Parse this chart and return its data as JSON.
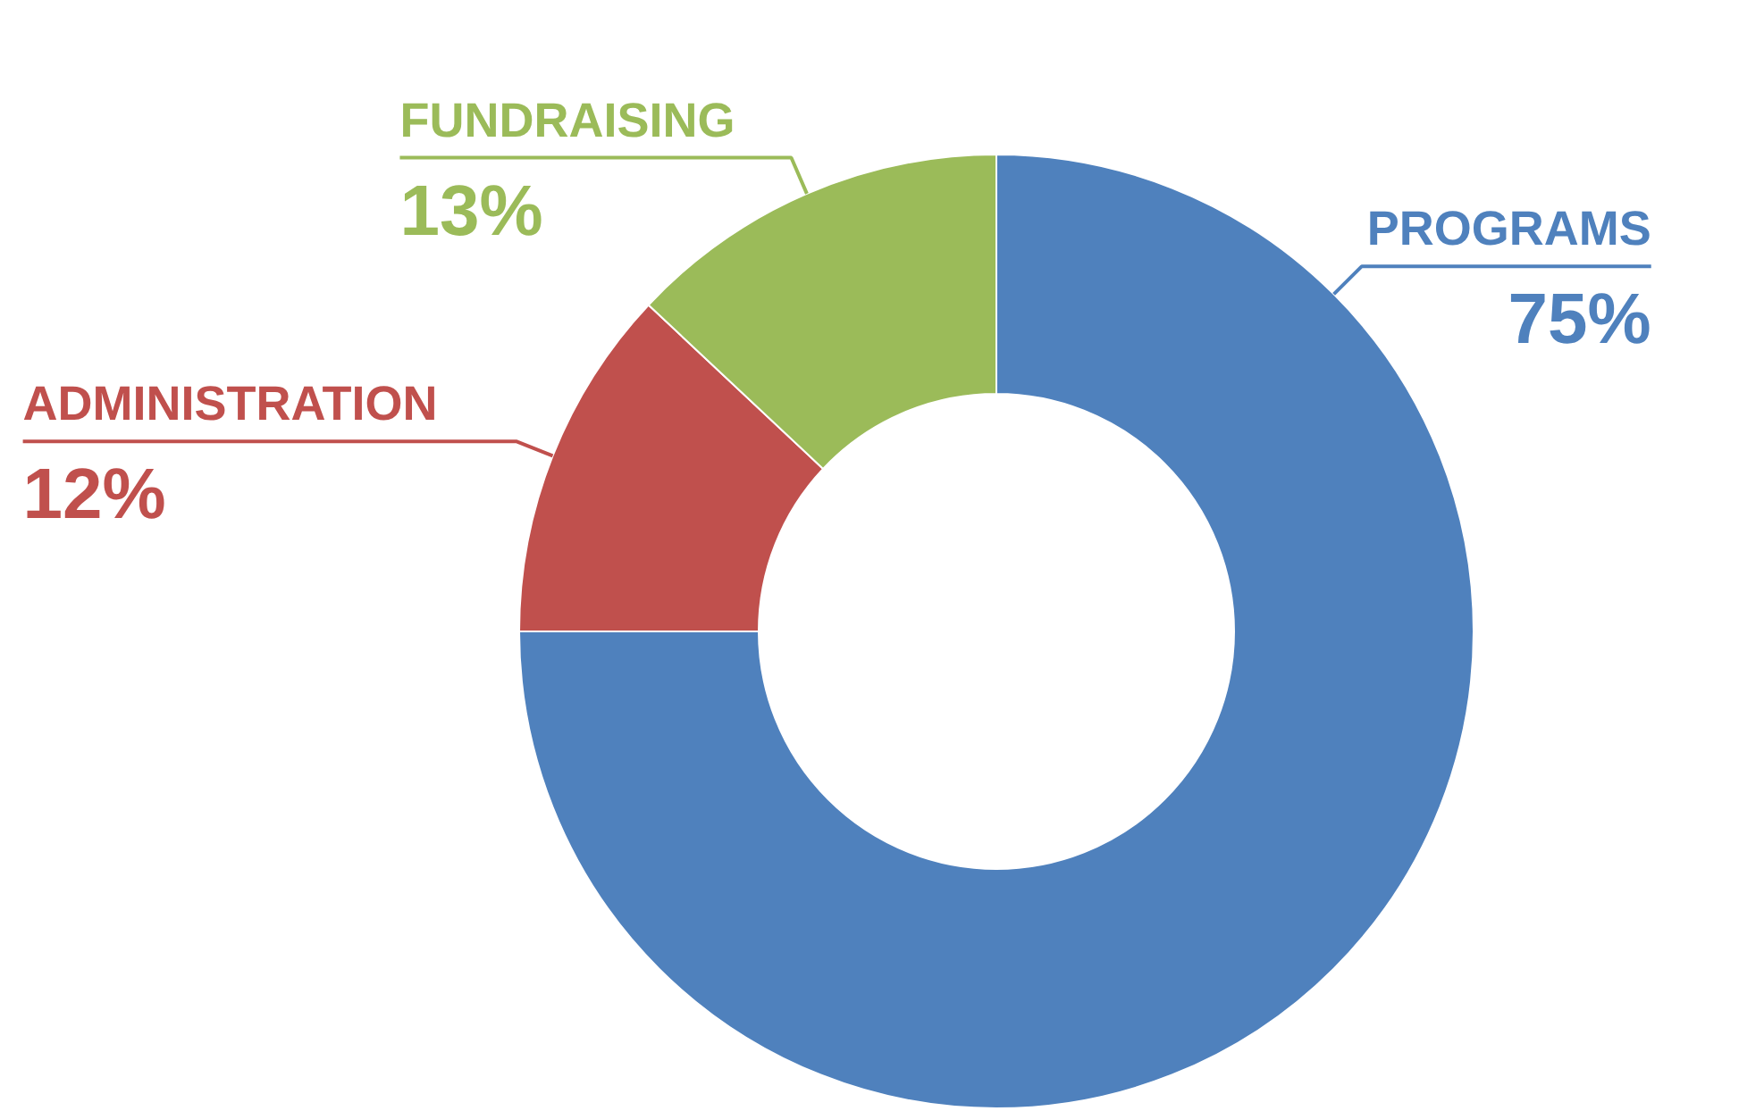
{
  "chart_data": {
    "type": "donut",
    "categories": [
      "PROGRAMS",
      "ADMINISTRATION",
      "FUNDRAISING"
    ],
    "values": [
      75,
      12,
      13
    ],
    "colors": [
      "#4f81bd",
      "#c0504d",
      "#9bbb59"
    ],
    "value_labels": [
      "75%",
      "12%",
      "13%"
    ]
  }
}
